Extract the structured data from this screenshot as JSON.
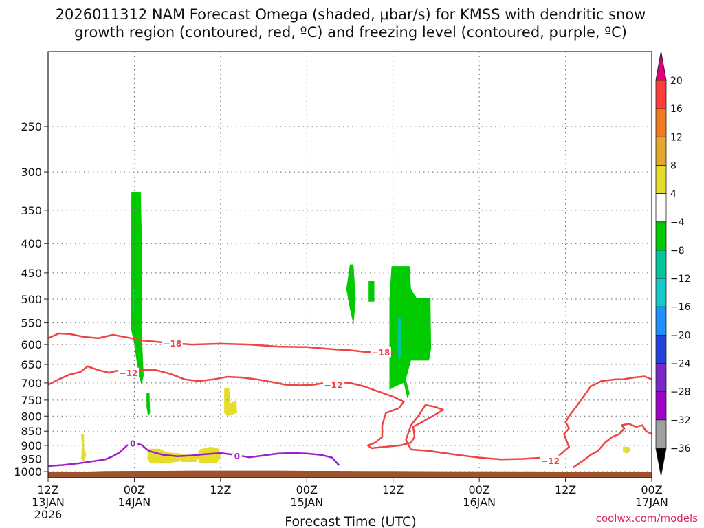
{
  "chart_data": {
    "type": "time-height cross section",
    "title_line1": "2026011312 NAM Forecast Omega (shaded, μbar/s) for KMSS with dendritic snow",
    "title_line2": "growth region (contoured, red, ºC) and freezing level (contoured, purple, ºC)",
    "xlabel": "Forecast Time (UTC)",
    "credit": "coolwx.com/models",
    "x_range_hours": [
      0,
      84
    ],
    "y_range_hpa": [
      1025,
      185
    ],
    "x_ticks": [
      {
        "hour": 0,
        "label": "12Z",
        "sub": "13JAN",
        "sub2": "2026"
      },
      {
        "hour": 12,
        "label": "00Z",
        "sub": "14JAN",
        "sub2": ""
      },
      {
        "hour": 24,
        "label": "12Z",
        "sub": "",
        "sub2": ""
      },
      {
        "hour": 36,
        "label": "00Z",
        "sub": "15JAN",
        "sub2": ""
      },
      {
        "hour": 48,
        "label": "12Z",
        "sub": "",
        "sub2": ""
      },
      {
        "hour": 60,
        "label": "00Z",
        "sub": "16JAN",
        "sub2": ""
      },
      {
        "hour": 72,
        "label": "12Z",
        "sub": "",
        "sub2": ""
      },
      {
        "hour": 84,
        "label": "00Z",
        "sub": "17JAN",
        "sub2": ""
      }
    ],
    "y_ticks": [
      250,
      300,
      350,
      400,
      450,
      500,
      550,
      600,
      650,
      700,
      750,
      800,
      850,
      900,
      950,
      1000
    ],
    "colorbar": {
      "labels": [
        "20",
        "16",
        "12",
        "8",
        "4",
        "−4",
        "−8",
        "−12",
        "−16",
        "−20",
        "−24",
        "−28",
        "−32",
        "−36"
      ],
      "bins": [
        {
          "lo": 20,
          "hi": null,
          "color": "#e0007f"
        },
        {
          "lo": 16,
          "hi": 20,
          "color": "#ff3c3c"
        },
        {
          "lo": 12,
          "hi": 16,
          "color": "#f07c1e"
        },
        {
          "lo": 8,
          "hi": 12,
          "color": "#e3a82b"
        },
        {
          "lo": 4,
          "hi": 8,
          "color": "#e5dd2e"
        },
        {
          "lo": -4,
          "hi": 4,
          "color": "#ffffff"
        },
        {
          "lo": -8,
          "hi": -4,
          "color": "#00cc00"
        },
        {
          "lo": -12,
          "hi": -8,
          "color": "#00c69a"
        },
        {
          "lo": -16,
          "hi": -12,
          "color": "#16c8c8"
        },
        {
          "lo": -20,
          "hi": -16,
          "color": "#1e90ff"
        },
        {
          "lo": -24,
          "hi": -20,
          "color": "#2244dd"
        },
        {
          "lo": -28,
          "hi": -24,
          "color": "#7a28c8"
        },
        {
          "lo": -32,
          "hi": -28,
          "color": "#a000c8"
        },
        {
          "lo": -36,
          "hi": -32,
          "color": "#a0a0a0"
        },
        {
          "lo": null,
          "hi": -36,
          "color": "#000000"
        }
      ]
    },
    "terrain": {
      "color": "#a0522d",
      "pressure_hpa": [
        1001,
        1001,
        998,
        997,
        997,
        996,
        996,
        996,
        996,
        997,
        997,
        998,
        998,
        999,
        999,
        1000,
        1000
      ],
      "hours": [
        0,
        4,
        8,
        12,
        16,
        20,
        24,
        28,
        32,
        36,
        40,
        44,
        48,
        56,
        64,
        72,
        84
      ]
    },
    "omega_regions": [
      {
        "name": "green column 14JAN",
        "value": -6,
        "color": "#00cc00",
        "polygon": [
          [
            11.6,
            325
          ],
          [
            12.9,
            325
          ],
          [
            13.1,
            420
          ],
          [
            13.0,
            560
          ],
          [
            13.3,
            680
          ],
          [
            13.0,
            705
          ],
          [
            12.6,
            680
          ],
          [
            12.0,
            600
          ],
          [
            11.5,
            560
          ],
          [
            11.5,
            420
          ]
        ]
      },
      {
        "name": "green blob 750",
        "value": -6,
        "color": "#00cc00",
        "polygon": [
          [
            13.7,
            730
          ],
          [
            14.1,
            728
          ],
          [
            14.2,
            790
          ],
          [
            13.9,
            800
          ],
          [
            13.7,
            770
          ]
        ]
      },
      {
        "name": "teal spot 14JAN",
        "value": -10,
        "color": "#00c69a",
        "polygon": [
          [
            11.8,
            480
          ],
          [
            12.0,
            480
          ],
          [
            12.0,
            525
          ],
          [
            11.8,
            525
          ]
        ]
      },
      {
        "name": "green blob 500 left",
        "value": -6,
        "color": "#00cc00",
        "polygon": [
          [
            42.0,
            435
          ],
          [
            42.5,
            435
          ],
          [
            42.8,
            500
          ],
          [
            42.5,
            555
          ],
          [
            42.0,
            520
          ],
          [
            41.5,
            480
          ]
        ]
      },
      {
        "name": "green blob 500 small",
        "value": -6,
        "color": "#00cc00",
        "polygon": [
          [
            44.6,
            465
          ],
          [
            45.4,
            465
          ],
          [
            45.4,
            505
          ],
          [
            44.6,
            505
          ]
        ]
      },
      {
        "name": "green column 15JAN",
        "value": -6,
        "color": "#00cc00",
        "polygon": [
          [
            47.8,
            438
          ],
          [
            50.3,
            438
          ],
          [
            50.5,
            480
          ],
          [
            51.3,
            498
          ],
          [
            53.2,
            498
          ],
          [
            53.3,
            610
          ],
          [
            53.0,
            640
          ],
          [
            50.5,
            640
          ],
          [
            49.8,
            690
          ],
          [
            50.3,
            730
          ],
          [
            50.0,
            745
          ],
          [
            49.5,
            700
          ],
          [
            48.3,
            710
          ],
          [
            47.5,
            720
          ],
          [
            47.5,
            500
          ]
        ]
      },
      {
        "name": "teal streak 15JAN",
        "value": -10,
        "color": "#00c69a",
        "polygon": [
          [
            48.7,
            540
          ],
          [
            49.1,
            540
          ],
          [
            49.2,
            620
          ],
          [
            48.8,
            645
          ],
          [
            48.6,
            600
          ]
        ]
      },
      {
        "name": "yellow 910 left",
        "value": 5,
        "color": "#e5dd2e",
        "polygon": [
          [
            4.6,
            860
          ],
          [
            5.0,
            860
          ],
          [
            5.0,
            910
          ],
          [
            5.3,
            935
          ],
          [
            5.0,
            960
          ],
          [
            4.6,
            950
          ],
          [
            4.7,
            900
          ]
        ]
      },
      {
        "name": "yellow 760 mid",
        "value": 5,
        "color": "#e5dd2e",
        "polygon": [
          [
            24.5,
            715
          ],
          [
            25.2,
            715
          ],
          [
            25.4,
            760
          ],
          [
            26.2,
            750
          ],
          [
            26.3,
            790
          ],
          [
            25.0,
            800
          ],
          [
            24.5,
            790
          ]
        ]
      },
      {
        "name": "yellow 950 band A",
        "value": 5,
        "color": "#e5dd2e",
        "polygon": [
          [
            14.0,
            912
          ],
          [
            15.5,
            912
          ],
          [
            16.5,
            925
          ],
          [
            18.5,
            930
          ],
          [
            18.3,
            960
          ],
          [
            16.0,
            968
          ],
          [
            14.2,
            968
          ],
          [
            13.8,
            945
          ]
        ]
      },
      {
        "name": "yellow 950 band B",
        "value": 5,
        "color": "#e5dd2e",
        "polygon": [
          [
            21.0,
            915
          ],
          [
            22.6,
            905
          ],
          [
            23.8,
            912
          ],
          [
            24.0,
            945
          ],
          [
            23.5,
            965
          ],
          [
            21.0,
            965
          ],
          [
            20.8,
            940
          ]
        ]
      },
      {
        "name": "yellow 950 band C",
        "value": 5,
        "color": "#e5dd2e",
        "polygon": [
          [
            18.0,
            930
          ],
          [
            19.5,
            935
          ],
          [
            21.0,
            942
          ],
          [
            20.6,
            962
          ],
          [
            18.5,
            962
          ]
        ]
      },
      {
        "name": "yellow 930 right",
        "value": 5,
        "color": "#e5dd2e",
        "polygon": [
          [
            80.0,
            905
          ],
          [
            80.8,
            905
          ],
          [
            81.1,
            915
          ],
          [
            80.7,
            930
          ],
          [
            80.0,
            925
          ]
        ]
      }
    ],
    "contours": [
      {
        "name": "-18C isotherm",
        "color": "#ee4444",
        "width": 2.5,
        "label": "−18",
        "points": [
          [
            0,
            585
          ],
          [
            1.5,
            574
          ],
          [
            3,
            575
          ],
          [
            5,
            582
          ],
          [
            7,
            585
          ],
          [
            9,
            577
          ],
          [
            11,
            583
          ],
          [
            13,
            590
          ],
          [
            16,
            595
          ],
          [
            20,
            600
          ],
          [
            24,
            598
          ],
          [
            28,
            600
          ],
          [
            32,
            605
          ],
          [
            36,
            606
          ],
          [
            38,
            609
          ],
          [
            40,
            612
          ],
          [
            42,
            614
          ],
          [
            44,
            618
          ],
          [
            46,
            620
          ],
          [
            48,
            618
          ]
        ],
        "labels": [
          [
            17.3,
            597
          ],
          [
            46.3,
            619
          ]
        ]
      },
      {
        "name": "-12C isotherm",
        "color": "#ee4444",
        "width": 2.5,
        "label": "−12",
        "points": [
          [
            0,
            705
          ],
          [
            1.5,
            690
          ],
          [
            3,
            677
          ],
          [
            4.5,
            670
          ],
          [
            5.5,
            655
          ],
          [
            7,
            665
          ],
          [
            8.5,
            672
          ],
          [
            10,
            665
          ],
          [
            12,
            664
          ],
          [
            13,
            665
          ],
          [
            15,
            665
          ],
          [
            17,
            675
          ],
          [
            19,
            690
          ],
          [
            21,
            695
          ],
          [
            23,
            690
          ],
          [
            25,
            683
          ],
          [
            27,
            685
          ],
          [
            29,
            690
          ],
          [
            31,
            697
          ],
          [
            33,
            705
          ],
          [
            35,
            707
          ],
          [
            37,
            705
          ],
          [
            38.5,
            700
          ],
          [
            40,
            698
          ],
          [
            42,
            700
          ],
          [
            44,
            710
          ],
          [
            46,
            725
          ],
          [
            48,
            740
          ],
          [
            49.5,
            755
          ],
          [
            48.8,
            775
          ],
          [
            47,
            790
          ],
          [
            46.5,
            830
          ],
          [
            46.5,
            870
          ],
          [
            45.5,
            890
          ],
          [
            44.5,
            900
          ],
          [
            45,
            910
          ],
          [
            47,
            905
          ],
          [
            49,
            900
          ],
          [
            50.5,
            890
          ],
          [
            51,
            870
          ],
          [
            50.8,
            835
          ],
          [
            52,
            820
          ],
          [
            53.5,
            800
          ],
          [
            55,
            780
          ],
          [
            53.7,
            770
          ],
          [
            52.5,
            765
          ],
          [
            51.5,
            800
          ],
          [
            50.5,
            830
          ],
          [
            49.8,
            880
          ],
          [
            50.5,
            915
          ],
          [
            53,
            920
          ],
          [
            57,
            935
          ],
          [
            60,
            945
          ],
          [
            63,
            952
          ],
          [
            66,
            950
          ],
          [
            69,
            945
          ],
          [
            71,
            940
          ],
          [
            72.5,
            905
          ],
          [
            72,
            875
          ],
          [
            71.8,
            860
          ],
          [
            72.5,
            840
          ],
          [
            72,
            820
          ],
          [
            72.5,
            800
          ],
          [
            73.5,
            770
          ],
          [
            74.5,
            740
          ],
          [
            75.5,
            710
          ],
          [
            77,
            695
          ],
          [
            79,
            690
          ],
          [
            80,
            690
          ],
          [
            81.5,
            685
          ],
          [
            83,
            682
          ],
          [
            84,
            690
          ]
        ],
        "labels": [
          [
            11.2,
            673
          ],
          [
            39.7,
            706
          ],
          [
            69.9,
            958
          ]
        ]
      },
      {
        "name": "-12C isotherm right",
        "color": "#ee4444",
        "width": 2.5,
        "label": "",
        "points": [
          [
            84,
            860
          ],
          [
            83.2,
            850
          ],
          [
            82.7,
            830
          ],
          [
            81.8,
            835
          ],
          [
            80.8,
            825
          ],
          [
            79.8,
            830
          ],
          [
            80.2,
            840
          ],
          [
            79.5,
            860
          ],
          [
            78.5,
            870
          ],
          [
            77.5,
            890
          ],
          [
            76.5,
            920
          ],
          [
            75.5,
            935
          ],
          [
            74.8,
            950
          ],
          [
            74.0,
            965
          ],
          [
            73.0,
            985
          ]
        ],
        "labels": []
      },
      {
        "name": "0C freezing level",
        "color": "#9b1fcc",
        "width": 2.5,
        "label": "0",
        "points": [
          [
            0,
            978
          ],
          [
            2,
            974
          ],
          [
            4,
            968
          ],
          [
            6,
            960
          ],
          [
            8,
            952
          ],
          [
            9,
            940
          ],
          [
            10,
            925
          ],
          [
            11,
            900
          ],
          [
            12,
            893
          ],
          [
            13,
            898
          ],
          [
            14,
            920
          ],
          [
            16,
            935
          ],
          [
            18,
            940
          ],
          [
            20,
            937
          ],
          [
            22,
            932
          ],
          [
            24,
            928
          ],
          [
            26,
            935
          ],
          [
            28,
            944
          ],
          [
            30,
            937
          ],
          [
            32,
            930
          ],
          [
            34,
            928
          ],
          [
            36,
            930
          ],
          [
            38,
            935
          ],
          [
            39.5,
            945
          ],
          [
            40.5,
            975
          ]
        ],
        "labels": [
          [
            11.8,
            893
          ],
          [
            26.3,
            940
          ]
        ]
      }
    ]
  }
}
